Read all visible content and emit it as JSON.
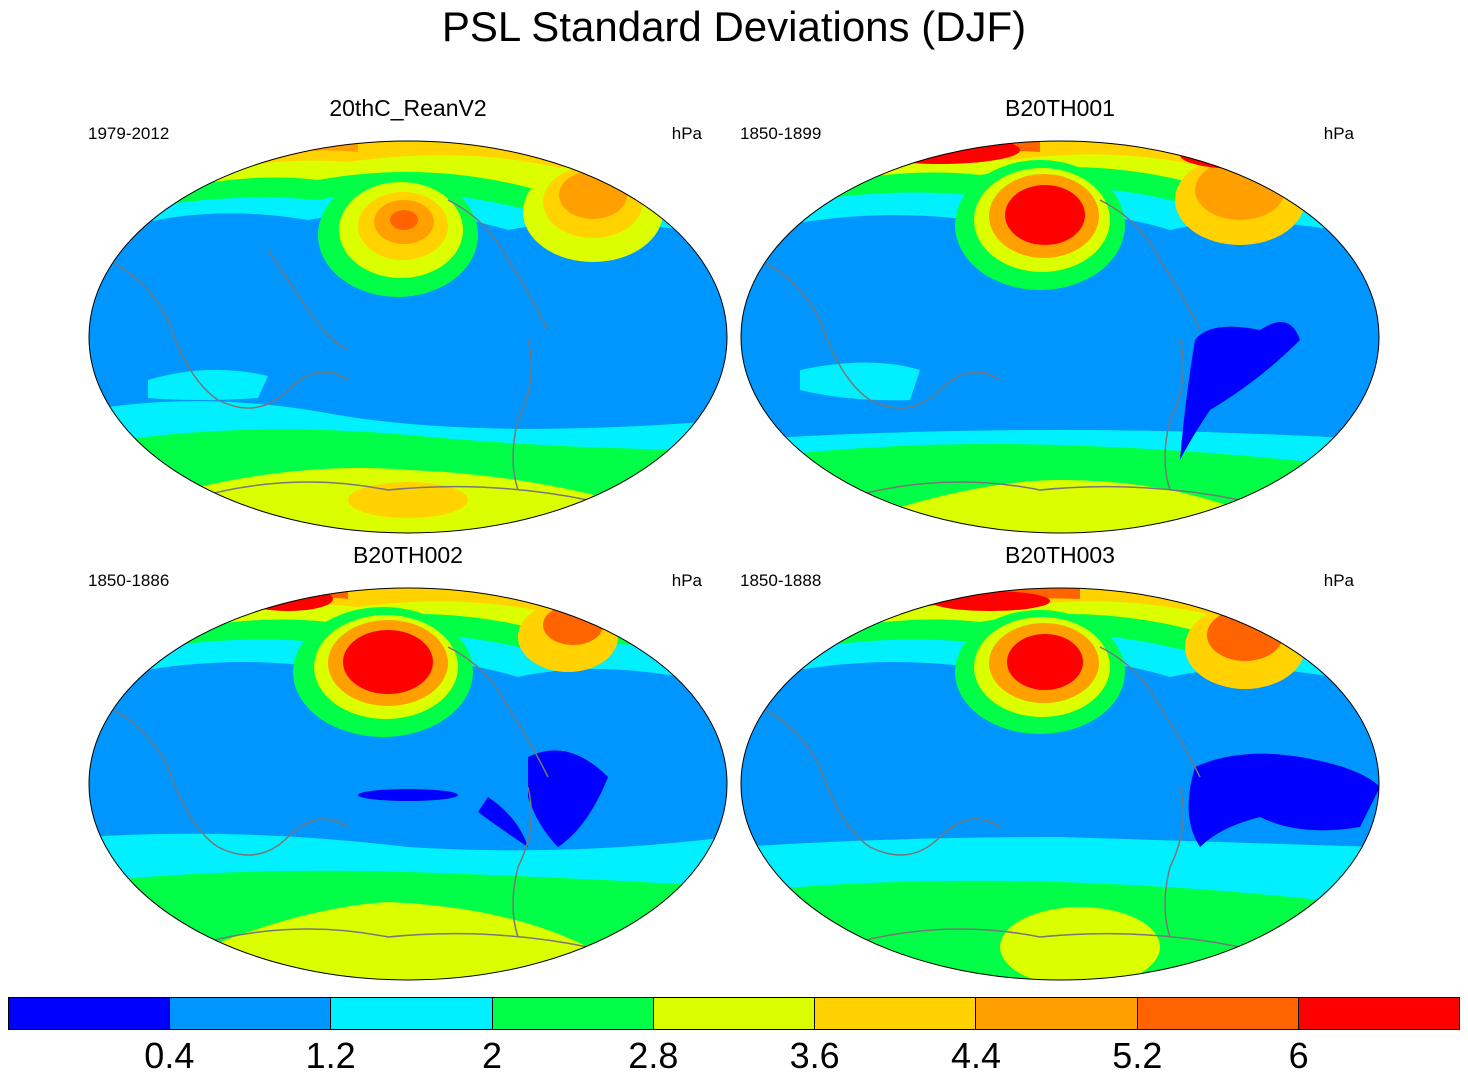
{
  "title": "PSL Standard Deviations (DJF)",
  "panels": [
    {
      "name": "20thC_ReanV2",
      "period": "1979-2012",
      "units": "hPa"
    },
    {
      "name": "B20TH001",
      "period": "1850-1899",
      "units": "hPa"
    },
    {
      "name": "B20TH002",
      "period": "1850-1886",
      "units": "hPa"
    },
    {
      "name": "B20TH003",
      "period": "1850-1888",
      "units": "hPa"
    }
  ],
  "colorbar": {
    "levels": [
      "0.4",
      "1.2",
      "2",
      "2.8",
      "3.6",
      "4.4",
      "5.2",
      "6"
    ],
    "colors": [
      "#0000ff",
      "#0096ff",
      "#00f0ff",
      "#00ff46",
      "#dcff00",
      "#ffd200",
      "#ffa000",
      "#ff6400",
      "#ff0000"
    ]
  },
  "coastline_color": "#777777"
}
